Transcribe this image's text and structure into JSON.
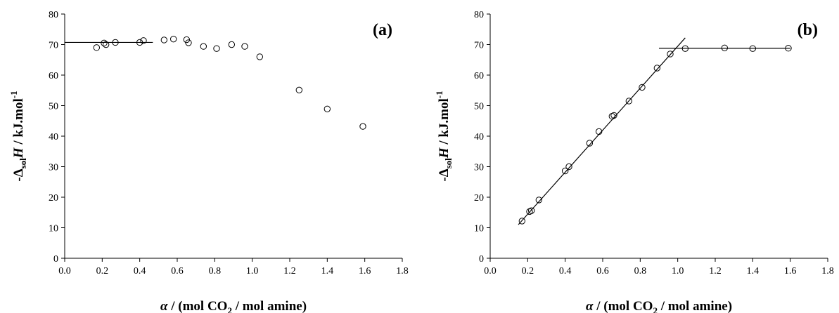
{
  "chart_data": [
    {
      "type": "scatter",
      "panel_label": "(a)",
      "ylabel": {
        "prefix": "-Δ",
        "sub": "sol",
        "var": "H",
        "unit": " / kJ.mol",
        "sup": "-1"
      },
      "xlabel": {
        "var": "α",
        "pre": " / (mol CO",
        "sub": "2",
        "post": " / mol amine)"
      },
      "xlim": [
        0,
        1.8
      ],
      "ylim": [
        0,
        80
      ],
      "xticks": [
        "0.0",
        "0.2",
        "0.4",
        "0.6",
        "0.8",
        "1.0",
        "1.2",
        "1.4",
        "1.6",
        "1.8"
      ],
      "yticks": [
        "0",
        "10",
        "20",
        "30",
        "40",
        "50",
        "60",
        "70",
        "80"
      ],
      "grid": false,
      "points": [
        {
          "x": 0.17,
          "y": 69.0
        },
        {
          "x": 0.21,
          "y": 70.5
        },
        {
          "x": 0.22,
          "y": 70.0
        },
        {
          "x": 0.27,
          "y": 70.7
        },
        {
          "x": 0.4,
          "y": 70.7
        },
        {
          "x": 0.42,
          "y": 71.3
        },
        {
          "x": 0.53,
          "y": 71.5
        },
        {
          "x": 0.58,
          "y": 71.8
        },
        {
          "x": 0.65,
          "y": 71.6
        },
        {
          "x": 0.66,
          "y": 70.6
        },
        {
          "x": 0.74,
          "y": 69.4
        },
        {
          "x": 0.81,
          "y": 68.7
        },
        {
          "x": 0.89,
          "y": 70.0
        },
        {
          "x": 0.96,
          "y": 69.4
        },
        {
          "x": 1.04,
          "y": 66.0
        },
        {
          "x": 1.25,
          "y": 55.1
        },
        {
          "x": 1.4,
          "y": 48.9
        },
        {
          "x": 1.59,
          "y": 43.2
        }
      ],
      "lines": [
        {
          "x": [
            0.0,
            0.47
          ],
          "y": [
            70.7,
            70.7
          ]
        }
      ]
    },
    {
      "type": "scatter",
      "panel_label": "(b)",
      "ylabel": {
        "prefix": "-Δ",
        "sub": "sol",
        "var": "H",
        "unit": " / kJ.mol",
        "sup": "-1"
      },
      "xlabel": {
        "var": "α",
        "pre": " / (mol CO",
        "sub": "2",
        "post": " / mol amine)"
      },
      "xlim": [
        0,
        1.8
      ],
      "ylim": [
        0,
        80
      ],
      "xticks": [
        "0.0",
        "0.2",
        "0.4",
        "0.6",
        "0.8",
        "1.0",
        "1.2",
        "1.4",
        "1.6",
        "1.8"
      ],
      "yticks": [
        "0",
        "10",
        "20",
        "30",
        "40",
        "50",
        "60",
        "70",
        "80"
      ],
      "grid": false,
      "points": [
        {
          "x": 0.17,
          "y": 12.2
        },
        {
          "x": 0.21,
          "y": 15.3
        },
        {
          "x": 0.22,
          "y": 15.6
        },
        {
          "x": 0.26,
          "y": 19.1
        },
        {
          "x": 0.4,
          "y": 28.6
        },
        {
          "x": 0.42,
          "y": 30.0
        },
        {
          "x": 0.53,
          "y": 37.7
        },
        {
          "x": 0.58,
          "y": 41.5
        },
        {
          "x": 0.65,
          "y": 46.5
        },
        {
          "x": 0.66,
          "y": 46.8
        },
        {
          "x": 0.74,
          "y": 51.5
        },
        {
          "x": 0.81,
          "y": 56.0
        },
        {
          "x": 0.89,
          "y": 62.3
        },
        {
          "x": 0.96,
          "y": 66.9
        },
        {
          "x": 1.04,
          "y": 68.7
        },
        {
          "x": 1.25,
          "y": 68.9
        },
        {
          "x": 1.4,
          "y": 68.7
        },
        {
          "x": 1.59,
          "y": 68.8
        }
      ],
      "lines": [
        {
          "x": [
            0.15,
            1.04
          ],
          "y": [
            11.0,
            72.2
          ]
        },
        {
          "x": [
            0.9,
            1.6
          ],
          "y": [
            68.8,
            68.8
          ]
        }
      ]
    }
  ]
}
